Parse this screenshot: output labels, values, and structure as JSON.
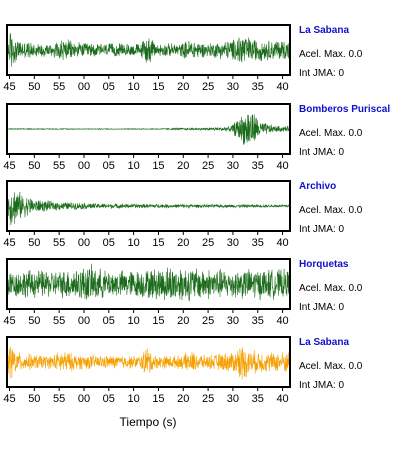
{
  "chart_data": {
    "type": "line",
    "xlabel": "Tiempo (s)",
    "x_tick_labels": [
      "45",
      "50",
      "55",
      "00",
      "05",
      "10",
      "15",
      "20",
      "25",
      "30",
      "35",
      "40"
    ],
    "panels": [
      {
        "station": "La Sabana",
        "acel_label": "Acel. Max. 0.0",
        "jma_label": "Int JMA: 0",
        "color": "#1a6b1a",
        "env": [
          [
            0,
            0.35
          ],
          [
            0.8,
            1.0
          ],
          [
            2,
            0.45
          ],
          [
            5,
            0.35
          ],
          [
            9,
            0.3
          ],
          [
            11,
            0.55
          ],
          [
            14,
            0.35
          ],
          [
            20,
            0.3
          ],
          [
            27,
            0.3
          ],
          [
            28,
            0.75
          ],
          [
            30,
            0.3
          ],
          [
            35,
            0.3
          ],
          [
            37,
            0.5
          ],
          [
            40,
            0.3
          ],
          [
            46,
            0.5
          ],
          [
            47,
            0.9
          ],
          [
            49,
            0.55
          ],
          [
            53,
            0.45
          ],
          [
            56,
            0.5
          ],
          [
            57,
            0.5
          ]
        ]
      },
      {
        "station": "Bomberos Puriscal",
        "acel_label": "Acel. Max. 0.0",
        "jma_label": "Int JMA: 0",
        "color": "#1a6b1a",
        "env": [
          [
            0,
            0.02
          ],
          [
            30,
            0.02
          ],
          [
            36,
            0.05
          ],
          [
            40,
            0.06
          ],
          [
            45,
            0.12
          ],
          [
            46,
            0.35
          ],
          [
            48,
            0.8
          ],
          [
            49,
            1.0
          ],
          [
            51,
            0.35
          ],
          [
            54,
            0.15
          ],
          [
            57,
            0.12
          ]
        ]
      },
      {
        "station": "Archivo",
        "acel_label": "Acel. Max. 0.0",
        "jma_label": "Int JMA: 0",
        "color": "#1a6b1a",
        "env": [
          [
            0,
            0.5
          ],
          [
            1,
            1.0
          ],
          [
            3,
            0.55
          ],
          [
            6,
            0.3
          ],
          [
            10,
            0.2
          ],
          [
            18,
            0.12
          ],
          [
            25,
            0.1
          ],
          [
            35,
            0.08
          ],
          [
            45,
            0.07
          ],
          [
            57,
            0.06
          ]
        ]
      },
      {
        "station": "Horquetas",
        "acel_label": "Acel. Max. 0.0",
        "jma_label": "Int JMA: 0",
        "color": "#1a6b1a",
        "env": [
          [
            0,
            0.6
          ],
          [
            5,
            0.65
          ],
          [
            10,
            0.6
          ],
          [
            17,
            0.85
          ],
          [
            20,
            0.6
          ],
          [
            28,
            0.65
          ],
          [
            33,
            0.85
          ],
          [
            38,
            0.75
          ],
          [
            45,
            0.65
          ],
          [
            50,
            0.7
          ],
          [
            57,
            0.65
          ]
        ]
      },
      {
        "station": "La Sabana",
        "acel_label": "Acel. Max. 0.0",
        "jma_label": "Int JMA: 0",
        "color": "#f5a000",
        "env": [
          [
            0,
            0.35
          ],
          [
            0.8,
            1.0
          ],
          [
            2,
            0.45
          ],
          [
            5,
            0.35
          ],
          [
            9,
            0.3
          ],
          [
            11,
            0.55
          ],
          [
            14,
            0.35
          ],
          [
            20,
            0.3
          ],
          [
            27,
            0.3
          ],
          [
            28,
            0.75
          ],
          [
            30,
            0.3
          ],
          [
            35,
            0.3
          ],
          [
            37,
            0.5
          ],
          [
            40,
            0.3
          ],
          [
            46,
            0.5
          ],
          [
            47,
            0.9
          ],
          [
            49,
            0.55
          ],
          [
            53,
            0.45
          ],
          [
            56,
            0.5
          ],
          [
            57,
            0.5
          ]
        ]
      }
    ]
  }
}
